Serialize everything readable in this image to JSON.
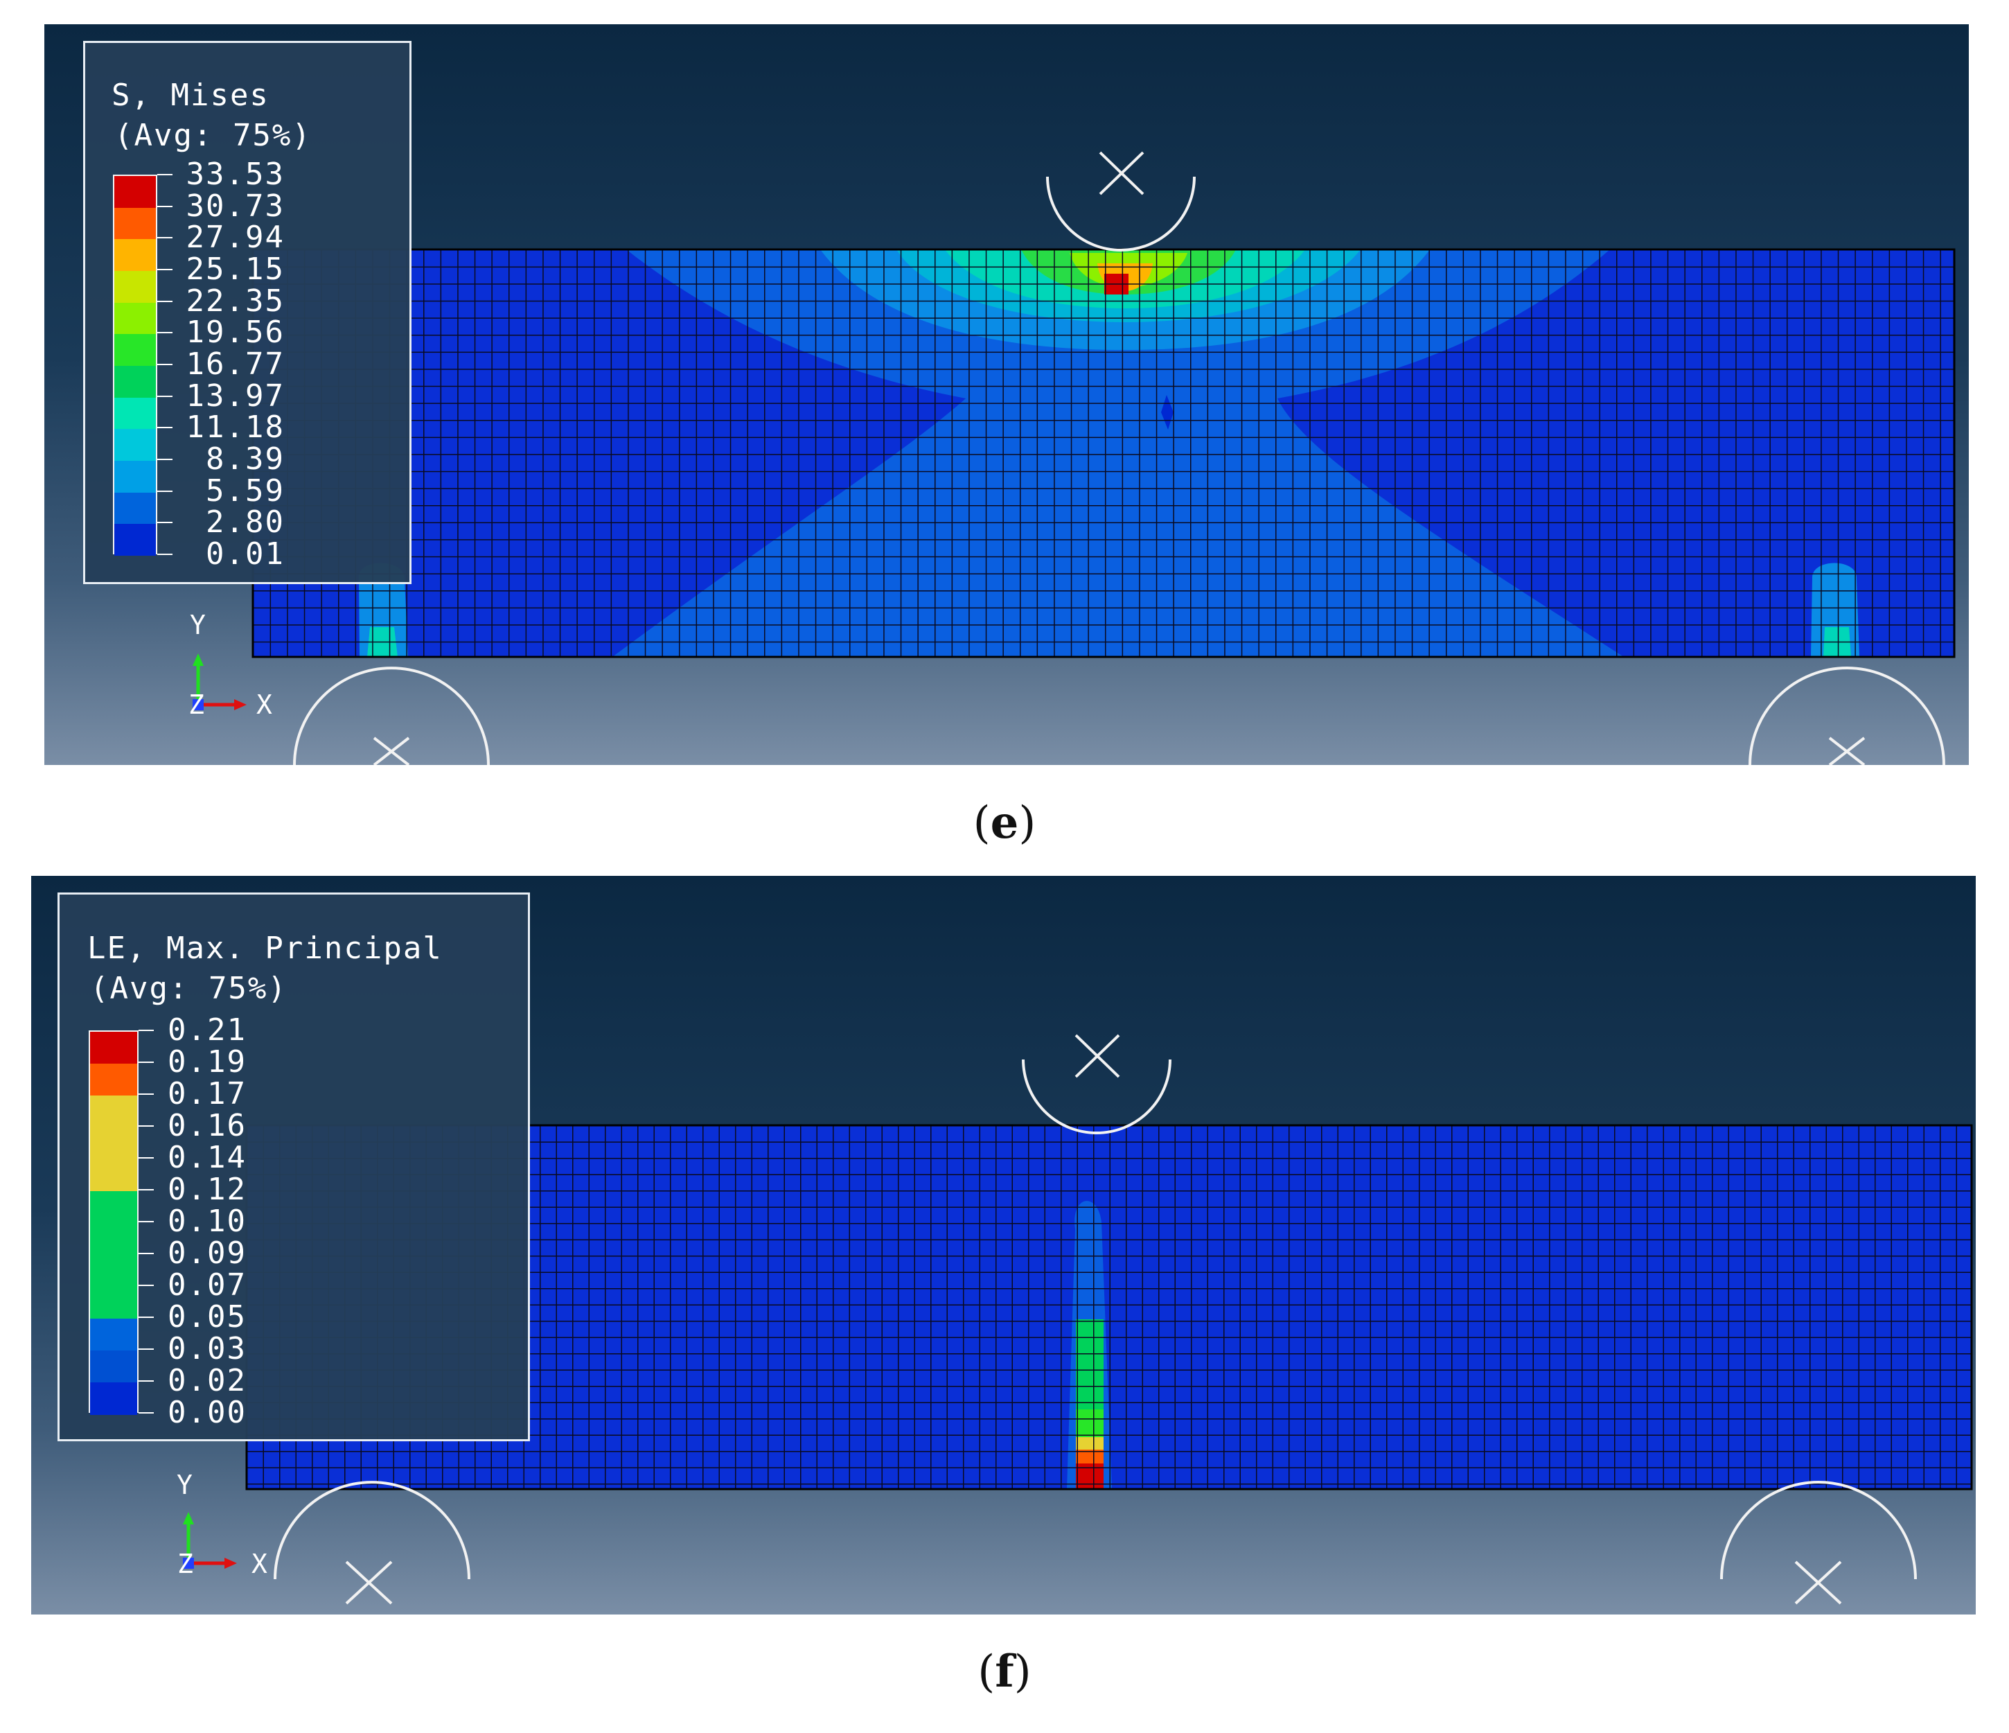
{
  "panels": [
    {
      "id": "e",
      "caption_letter": "e",
      "legend": {
        "title": "S, Mises",
        "subtitle": "(Avg: 75%)",
        "values": [
          "33.53",
          "30.73",
          "27.94",
          "25.15",
          "22.35",
          "19.56",
          "16.77",
          "13.97",
          "11.18",
          "8.39",
          "5.59",
          "2.80",
          "0.01"
        ],
        "colors": [
          "#d40000",
          "#ff5a00",
          "#ffb400",
          "#c8e600",
          "#8cf000",
          "#28e628",
          "#00d25a",
          "#00e6b4",
          "#00c8dc",
          "#00a0e6",
          "#0064dc",
          "#0028d2"
        ]
      },
      "axes": {
        "y": "Y",
        "z": "Z",
        "x": "X"
      }
    },
    {
      "id": "f",
      "caption_letter": "f",
      "legend": {
        "title": "LE, Max. Principal",
        "subtitle": "(Avg: 75%)",
        "values": [
          "0.21",
          "0.19",
          "0.17",
          "0.16",
          "0.14",
          "0.12",
          "0.10",
          "0.09",
          "0.07",
          "0.05",
          "0.03",
          "0.02",
          "0.00"
        ],
        "colors": [
          "#d40000",
          "#ff5a00",
          "#e6d232",
          "#e6d232",
          "#e6d232",
          "#00d25a",
          "#00d25a",
          "#00d25a",
          "#00d25a",
          "#0064dc",
          "#0050d2",
          "#0028d2"
        ]
      },
      "axes": {
        "y": "Y",
        "z": "Z",
        "x": "X"
      }
    }
  ]
}
